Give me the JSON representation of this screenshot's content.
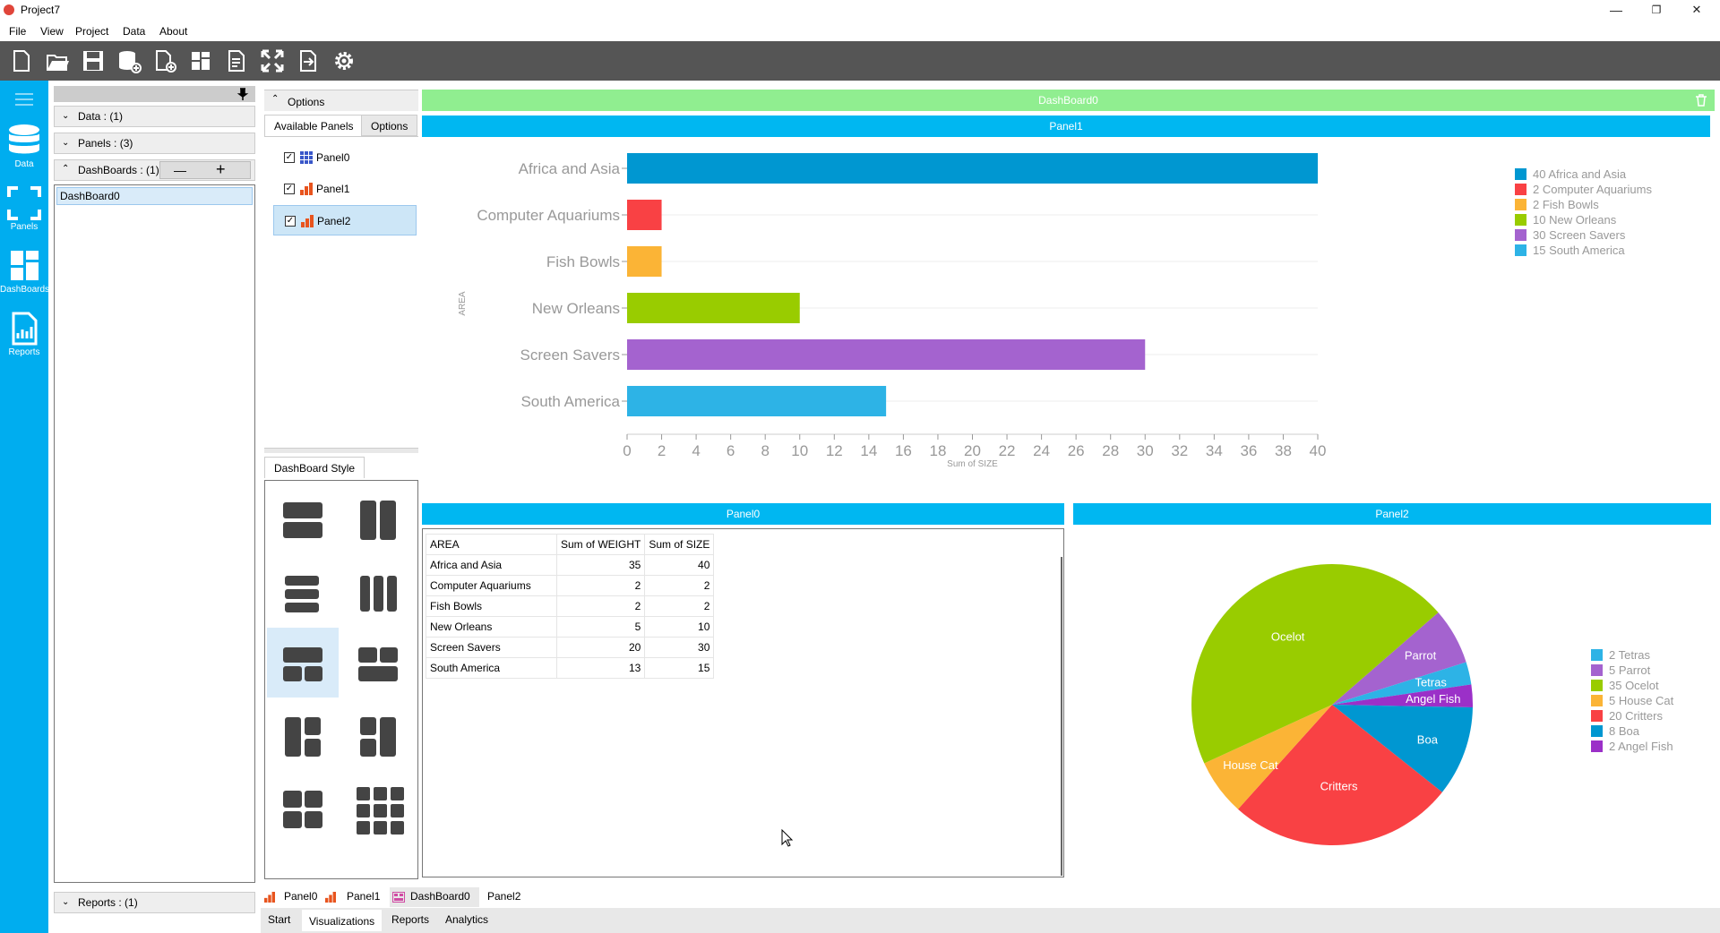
{
  "window": {
    "title": "Project7",
    "minimize": "—",
    "restore": "❐",
    "close": "✕"
  },
  "menu": [
    "File",
    "View",
    "Project",
    "Data",
    "About"
  ],
  "leftnav": [
    "Data",
    "Panels",
    "DashBoards",
    "Reports"
  ],
  "tree": {
    "data": "Data : (1)",
    "panels": "Panels : (3)",
    "dashboards": "DashBoards : (1)",
    "minus": "—",
    "plus": "+",
    "item": "DashBoard0",
    "reports": "Reports : (1)"
  },
  "options": {
    "header": "Options",
    "tabs": [
      "Available Panels",
      "Options"
    ],
    "panels": [
      {
        "name": "Panel0",
        "checked": true
      },
      {
        "name": "Panel1",
        "checked": true
      },
      {
        "name": "Panel2",
        "checked": true
      }
    ],
    "style_tab": "DashBoard Style"
  },
  "dashboard": {
    "title": "DashBoard0",
    "panel1_title": "Panel1",
    "panel0_title": "Panel0",
    "panel2_title": "Panel2"
  },
  "table": {
    "headers": [
      "AREA",
      "Sum of WEIGHT",
      "Sum of SIZE"
    ],
    "rows": [
      [
        "Africa and Asia",
        "35",
        "40"
      ],
      [
        "Computer Aquariums",
        "2",
        "2"
      ],
      [
        "Fish Bowls",
        "2",
        "2"
      ],
      [
        "New Orleans",
        "5",
        "10"
      ],
      [
        "Screen Savers",
        "20",
        "30"
      ],
      [
        "South America",
        "13",
        "15"
      ]
    ]
  },
  "bottom_tabs": [
    "Panel0",
    "Panel1",
    "DashBoard0",
    "Panel2"
  ],
  "bottom_tabs2": [
    "Start",
    "Visualizations",
    "Reports",
    "Analytics"
  ],
  "chart_data": [
    {
      "type": "bar",
      "orientation": "horizontal",
      "categories": [
        "Africa and Asia",
        "Computer Aquariums",
        "Fish Bowls",
        "New Orleans",
        "Screen Savers",
        "South America"
      ],
      "values": [
        40,
        2,
        2,
        10,
        30,
        15
      ],
      "colors": [
        "#0097d1",
        "#f94144",
        "#fbb436",
        "#99cc00",
        "#a463cf",
        "#2db3e6"
      ],
      "xlabel": "Sum of SIZE",
      "ylabel": "AREA",
      "xlim": [
        0,
        40
      ],
      "xticks": [
        0,
        2,
        4,
        6,
        8,
        10,
        12,
        14,
        16,
        18,
        20,
        22,
        24,
        26,
        28,
        30,
        32,
        34,
        36,
        38,
        40
      ],
      "legend": [
        "40 Africa and Asia",
        "2 Computer Aquariums",
        "2 Fish Bowls",
        "10 New Orleans",
        "30 Screen Savers",
        "15 South America"
      ],
      "legend_position": "right"
    },
    {
      "type": "pie",
      "labels": [
        "Tetras",
        "Parrot",
        "Ocelot",
        "House Cat",
        "Critters",
        "Boa",
        "Angel Fish"
      ],
      "values": [
        2,
        5,
        35,
        5,
        20,
        8,
        2
      ],
      "colors": [
        "#2db3e6",
        "#a463cf",
        "#99cc00",
        "#fbb436",
        "#f94144",
        "#0097d1",
        "#9b30c8"
      ],
      "legend": [
        "2 Tetras",
        "5 Parrot",
        "35 Ocelot",
        "5 House Cat",
        "20 Critters",
        "8 Boa",
        "2 Angel Fish"
      ],
      "legend_position": "right"
    }
  ]
}
